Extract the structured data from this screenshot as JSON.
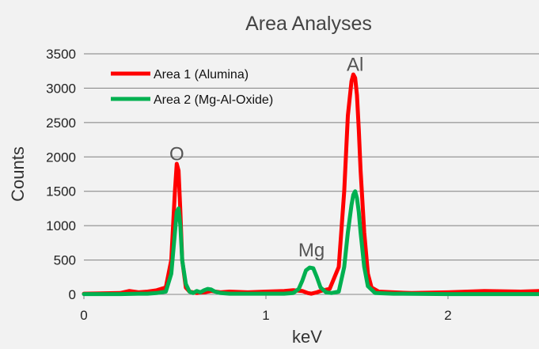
{
  "chart_data": {
    "type": "line",
    "title": "Area Analyses",
    "xlabel": "keV",
    "ylabel": "Counts",
    "xlim": [
      0,
      2.5
    ],
    "ylim": [
      0,
      3500
    ],
    "x_ticks": [
      0,
      1,
      2
    ],
    "y_ticks": [
      0,
      500,
      1000,
      1500,
      2000,
      2500,
      3000,
      3500
    ],
    "grid": "horizontal",
    "legend_position": "top-left",
    "series": [
      {
        "name": "Area 1 (Alumina)",
        "color": "#ff0000",
        "x": [
          0,
          0.2,
          0.25,
          0.3,
          0.35,
          0.4,
          0.45,
          0.48,
          0.5,
          0.51,
          0.52,
          0.53,
          0.54,
          0.56,
          0.58,
          0.62,
          0.66,
          0.7,
          0.75,
          0.8,
          0.9,
          1.0,
          1.1,
          1.15,
          1.2,
          1.23,
          1.25,
          1.28,
          1.3,
          1.35,
          1.4,
          1.43,
          1.45,
          1.47,
          1.48,
          1.49,
          1.5,
          1.51,
          1.52,
          1.54,
          1.56,
          1.58,
          1.62,
          1.7,
          1.8,
          2.0,
          2.2,
          2.4,
          2.5
        ],
        "y": [
          10,
          20,
          50,
          30,
          40,
          60,
          100,
          500,
          1500,
          1900,
          1800,
          1200,
          500,
          100,
          40,
          20,
          30,
          50,
          30,
          40,
          30,
          40,
          50,
          60,
          50,
          20,
          10,
          30,
          50,
          80,
          400,
          1500,
          2600,
          3100,
          3200,
          3150,
          2900,
          2400,
          1800,
          900,
          300,
          100,
          40,
          30,
          20,
          30,
          50,
          40,
          50
        ]
      },
      {
        "name": "Area 2 (Mg-Al-Oxide)",
        "color": "#00b050",
        "x": [
          0,
          0.2,
          0.3,
          0.35,
          0.4,
          0.45,
          0.48,
          0.5,
          0.51,
          0.52,
          0.53,
          0.54,
          0.56,
          0.58,
          0.6,
          0.62,
          0.64,
          0.66,
          0.68,
          0.7,
          0.72,
          0.75,
          0.8,
          0.9,
          1.0,
          1.1,
          1.15,
          1.18,
          1.2,
          1.22,
          1.24,
          1.26,
          1.28,
          1.3,
          1.33,
          1.36,
          1.4,
          1.43,
          1.45,
          1.47,
          1.48,
          1.49,
          1.5,
          1.51,
          1.52,
          1.54,
          1.56,
          1.6,
          1.7,
          2.0,
          2.5
        ],
        "y": [
          5,
          5,
          10,
          10,
          20,
          40,
          300,
          900,
          1200,
          1250,
          1000,
          500,
          150,
          40,
          20,
          50,
          30,
          60,
          80,
          70,
          40,
          20,
          10,
          10,
          10,
          10,
          20,
          80,
          200,
          350,
          390,
          380,
          250,
          100,
          30,
          20,
          40,
          400,
          900,
          1300,
          1450,
          1500,
          1400,
          1200,
          900,
          400,
          120,
          20,
          10,
          5,
          5
        ]
      }
    ],
    "annotations": [
      {
        "text": "O",
        "x": 0.51,
        "y": 1950
      },
      {
        "text": "Mg",
        "x": 1.25,
        "y": 550
      },
      {
        "text": "Al",
        "x": 1.49,
        "y": 3250
      }
    ]
  }
}
